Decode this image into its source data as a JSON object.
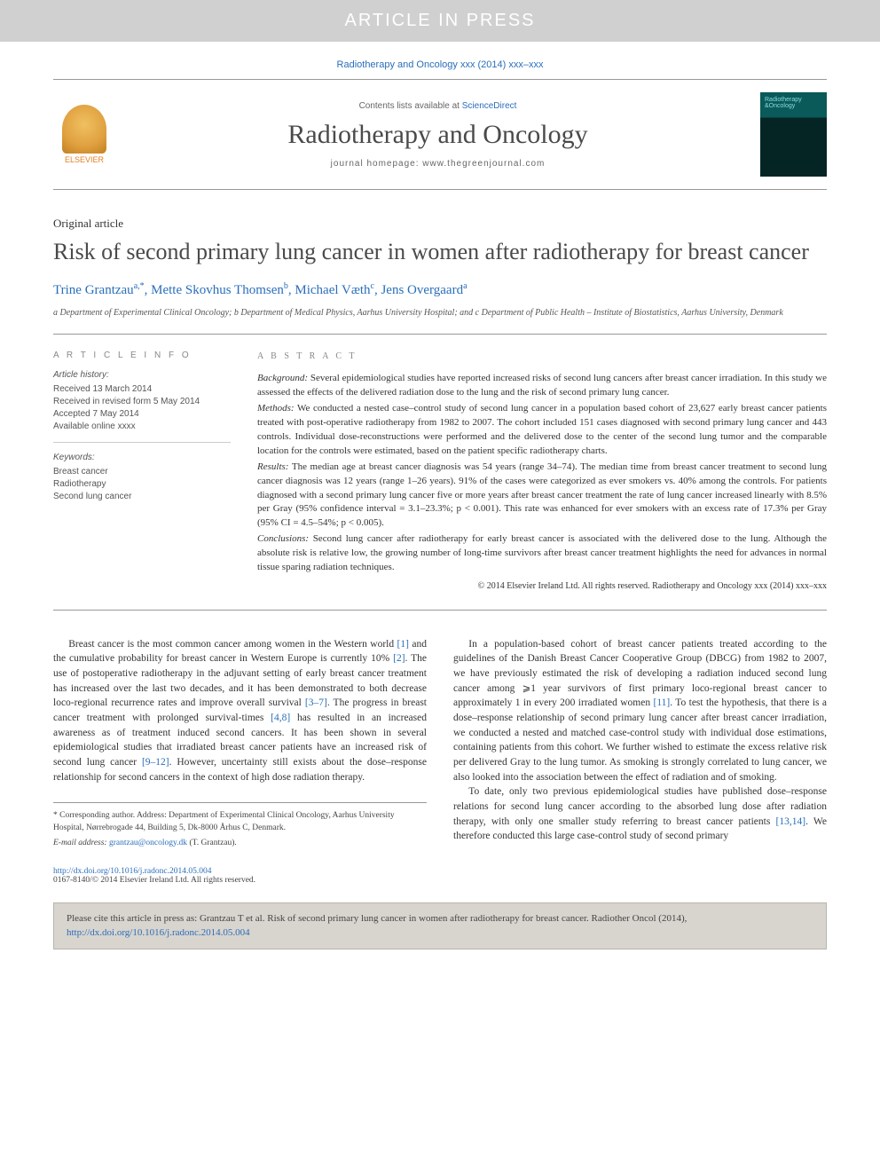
{
  "banner": "ARTICLE IN PRESS",
  "journal_ref": "Radiotherapy and Oncology xxx (2014) xxx–xxx",
  "header": {
    "contents_prefix": "Contents lists available at ",
    "contents_link": "ScienceDirect",
    "journal_name": "Radiotherapy and Oncology",
    "homepage_label": "journal homepage: www.thegreenjournal.com",
    "publisher": "ELSEVIER"
  },
  "article": {
    "type": "Original article",
    "title": "Risk of second primary lung cancer in women after radiotherapy for breast cancer",
    "authors_html": "Trine Grantzau",
    "authors": [
      {
        "name": "Trine Grantzau",
        "sup": "a,*"
      },
      {
        "name": "Mette Skovhus Thomsen",
        "sup": "b"
      },
      {
        "name": "Michael Væth",
        "sup": "c"
      },
      {
        "name": "Jens Overgaard",
        "sup": "a"
      }
    ],
    "affiliations": "a Department of Experimental Clinical Oncology; b Department of Medical Physics, Aarhus University Hospital; and c Department of Public Health – Institute of Biostatistics, Aarhus University, Denmark"
  },
  "info": {
    "heading": "A R T I C L E   I N F O",
    "history_label": "Article history:",
    "history": [
      "Received 13 March 2014",
      "Received in revised form 5 May 2014",
      "Accepted 7 May 2014",
      "Available online xxxx"
    ],
    "keywords_label": "Keywords:",
    "keywords": [
      "Breast cancer",
      "Radiotherapy",
      "Second lung cancer"
    ]
  },
  "abstract": {
    "heading": "A B S T R A C T",
    "sections": {
      "background_label": "Background:",
      "background": "Several epidemiological studies have reported increased risks of second lung cancers after breast cancer irradiation. In this study we assessed the effects of the delivered radiation dose to the lung and the risk of second primary lung cancer.",
      "methods_label": "Methods:",
      "methods": "We conducted a nested case–control study of second lung cancer in a population based cohort of 23,627 early breast cancer patients treated with post-operative radiotherapy from 1982 to 2007. The cohort included 151 cases diagnosed with second primary lung cancer and 443 controls. Individual dose-reconstructions were performed and the delivered dose to the center of the second lung tumor and the comparable location for the controls were estimated, based on the patient specific radiotherapy charts.",
      "results_label": "Results:",
      "results": "The median age at breast cancer diagnosis was 54 years (range 34–74). The median time from breast cancer treatment to second lung cancer diagnosis was 12 years (range 1–26 years). 91% of the cases were categorized as ever smokers vs. 40% among the controls. For patients diagnosed with a second primary lung cancer five or more years after breast cancer treatment the rate of lung cancer increased linearly with 8.5% per Gray (95% confidence interval = 3.1–23.3%; p < 0.001). This rate was enhanced for ever smokers with an excess rate of 17.3% per Gray (95% CI = 4.5–54%; p < 0.005).",
      "conclusions_label": "Conclusions:",
      "conclusions": "Second lung cancer after radiotherapy for early breast cancer is associated with the delivered dose to the lung. Although the absolute risk is relative low, the growing number of long-time survivors after breast cancer treatment highlights the need for advances in normal tissue sparing radiation techniques."
    },
    "copyright": "© 2014 Elsevier Ireland Ltd. All rights reserved. Radiotherapy and Oncology xxx (2014) xxx–xxx"
  },
  "body": {
    "p1_a": "Breast cancer is the most common cancer among women in the Western world ",
    "p1_ref1": "[1]",
    "p1_b": " and the cumulative probability for breast cancer in Western Europe is currently 10% ",
    "p1_ref2": "[2]",
    "p1_c": ". The use of postoperative radiotherapy in the adjuvant setting of early breast cancer treatment has increased over the last two decades, and it has been demonstrated to both decrease loco-regional recurrence rates and improve overall survival ",
    "p1_ref3": "[3–7]",
    "p1_d": ". The progress in breast cancer treatment with prolonged survival-times ",
    "p1_ref4": "[4,8]",
    "p1_e": " has resulted in an increased awareness as of treatment induced second cancers. It has been shown in several epidemiological studies that irradiated breast cancer patients have an increased risk of second lung cancer ",
    "p1_ref5": "[9–12]",
    "p1_f": ". However, uncertainty still exists about the dose–response relationship for second cancers in the context of high dose radiation therapy.",
    "p2_a": "In a population-based cohort of breast cancer patients treated according to the guidelines of the Danish Breast Cancer Cooperative Group (DBCG) from 1982 to 2007, we have previously estimated the risk of developing a radiation induced second lung cancer among ⩾1 year survivors of first primary loco-regional breast cancer to approximately 1 in every 200 irradiated women ",
    "p2_ref1": "[11]",
    "p2_b": ". To test the hypothesis, that there is a dose–response relationship of second primary lung cancer after breast cancer irradiation, we conducted a nested and matched case-control study with individual dose estimations, containing patients from this cohort. We further wished to estimate the excess relative risk per delivered Gray to the lung tumor. As smoking is strongly correlated to lung cancer, we also looked into the association between the effect of radiation and of smoking.",
    "p3_a": "To date, only two previous epidemiological studies have published dose–response relations for second lung cancer according to the absorbed lung dose after radiation therapy, with only one smaller study referring to breast cancer patients ",
    "p3_ref1": "[13,14]",
    "p3_b": ". We therefore conducted this large case-control study of second primary"
  },
  "footnote": {
    "corresponding": "* Corresponding author. Address: Department of Experimental Clinical Oncology, Aarhus University Hospital, Nørrebrogade 44, Building 5, Dk-8000 Århus C, Denmark.",
    "email_label": "E-mail address: ",
    "email": "grantzau@oncology.dk",
    "email_suffix": " (T. Grantzau)."
  },
  "doi": {
    "link": "http://dx.doi.org/10.1016/j.radonc.2014.05.004",
    "rights": "0167-8140/© 2014 Elsevier Ireland Ltd. All rights reserved."
  },
  "citation": {
    "text": "Please cite this article in press as: Grantzau T et al. Risk of second primary lung cancer in women after radiotherapy for breast cancer. Radiother Oncol (2014), ",
    "link": "http://dx.doi.org/10.1016/j.radonc.2014.05.004"
  },
  "colors": {
    "banner_bg": "#d0d0d0",
    "link": "#2a6ebb",
    "text": "#333333",
    "cite_bg": "#d8d4ce"
  }
}
